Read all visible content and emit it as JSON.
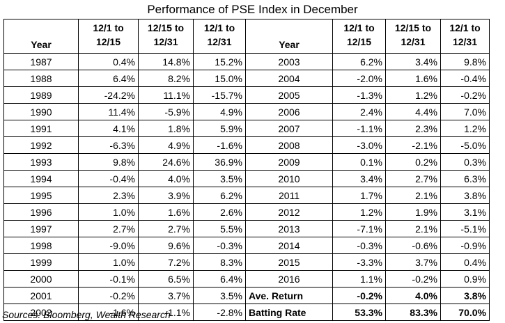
{
  "title": "Performance of PSE Index in December",
  "headers": [
    "Year",
    "12/1 to\n12/15",
    "12/15 to\n12/31",
    "12/1 to\n12/31"
  ],
  "left_rows": [
    [
      "1987",
      "0.4%",
      "14.8%",
      "15.2%"
    ],
    [
      "1988",
      "6.4%",
      "8.2%",
      "15.0%"
    ],
    [
      "1989",
      "-24.2%",
      "11.1%",
      "-15.7%"
    ],
    [
      "1990",
      "11.4%",
      "-5.9%",
      "4.9%"
    ],
    [
      "1991",
      "4.1%",
      "1.8%",
      "5.9%"
    ],
    [
      "1992",
      "-6.3%",
      "4.9%",
      "-1.6%"
    ],
    [
      "1993",
      "9.8%",
      "24.6%",
      "36.9%"
    ],
    [
      "1994",
      "-0.4%",
      "4.0%",
      "3.5%"
    ],
    [
      "1995",
      "2.3%",
      "3.9%",
      "6.2%"
    ],
    [
      "1996",
      "1.0%",
      "1.6%",
      "2.6%"
    ],
    [
      "1997",
      "2.7%",
      "2.7%",
      "5.5%"
    ],
    [
      "1998",
      "-9.0%",
      "9.6%",
      "-0.3%"
    ],
    [
      "1999",
      "1.0%",
      "7.2%",
      "8.3%"
    ],
    [
      "2000",
      "-0.1%",
      "6.5%",
      "6.4%"
    ],
    [
      "2001",
      "-0.2%",
      "3.7%",
      "3.5%"
    ],
    [
      "2002",
      "-1.6%",
      "-1.1%",
      "-2.8%"
    ]
  ],
  "right_rows": [
    [
      "2003",
      "6.2%",
      "3.4%",
      "9.8%"
    ],
    [
      "2004",
      "-2.0%",
      "1.6%",
      "-0.4%"
    ],
    [
      "2005",
      "-1.3%",
      "1.2%",
      "-0.2%"
    ],
    [
      "2006",
      "2.4%",
      "4.4%",
      "7.0%"
    ],
    [
      "2007",
      "-1.1%",
      "2.3%",
      "1.2%"
    ],
    [
      "2008",
      "-3.0%",
      "-2.1%",
      "-5.0%"
    ],
    [
      "2009",
      "0.1%",
      "0.2%",
      "0.3%"
    ],
    [
      "2010",
      "3.4%",
      "2.7%",
      "6.3%"
    ],
    [
      "2011",
      "1.7%",
      "2.1%",
      "3.8%"
    ],
    [
      "2012",
      "1.2%",
      "1.9%",
      "3.1%"
    ],
    [
      "2013",
      "-7.1%",
      "2.1%",
      "-5.1%"
    ],
    [
      "2014",
      "-0.3%",
      "-0.6%",
      "-0.9%"
    ],
    [
      "2015",
      "-3.3%",
      "3.7%",
      "0.4%"
    ],
    [
      "2016",
      "1.1%",
      "-0.2%",
      "0.9%"
    ],
    [
      "Ave. Return",
      "-0.2%",
      "4.0%",
      "3.8%"
    ],
    [
      "Batting Rate",
      "53.3%",
      "83.3%",
      "70.0%"
    ]
  ],
  "summary_labels": [
    "Ave. Return",
    "Batting Rate"
  ],
  "source": "Sources: Bloomberg, Wealth Research"
}
